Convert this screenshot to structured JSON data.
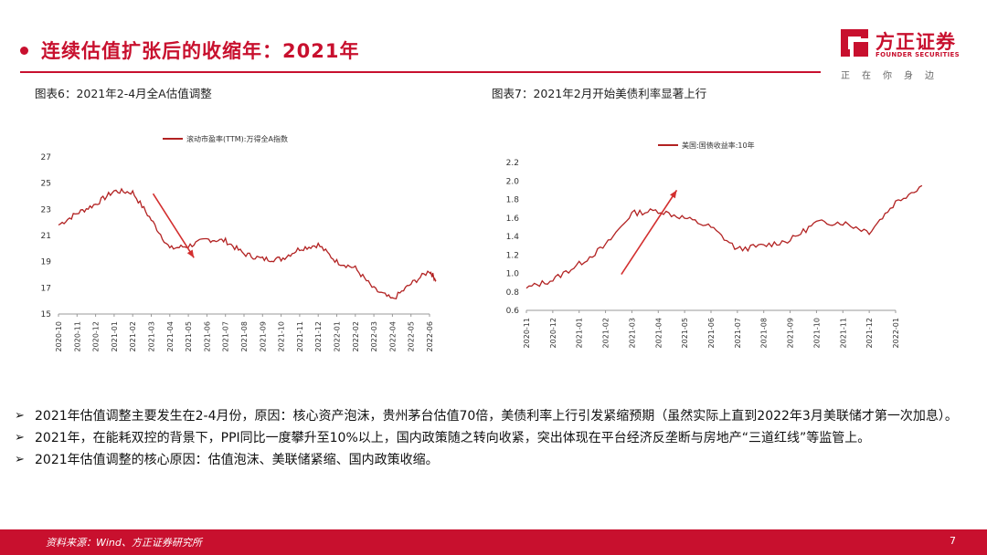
{
  "header": {
    "title": "连续估值扩张后的收缩年：2021年",
    "logo_cn": "方正证券",
    "logo_en": "FOUNDER SECURITIES",
    "logo_slogan": "正在你身边"
  },
  "figures": [
    {
      "caption": "图表6：2021年2-4月全A估值调整"
    },
    {
      "caption": "图表7：2021年2月开始美债利率显著上行"
    }
  ],
  "chart_data": [
    {
      "type": "line",
      "legend": "滚动市盈率(TTM):万得全A指数",
      "ylim": [
        15,
        27
      ],
      "yticks": [
        "27",
        "25",
        "23",
        "21",
        "19",
        "17",
        "15"
      ],
      "xticks": [
        "2020-10",
        "2020-11",
        "2020-12",
        "2021-01",
        "2021-02",
        "2021-03",
        "2021-04",
        "2021-05",
        "2021-06",
        "2021-07",
        "2021-08",
        "2021-09",
        "2021-10",
        "2021-11",
        "2021-12",
        "2022-01",
        "2022-02",
        "2022-03",
        "2022-04",
        "2022-05",
        "2022-06"
      ],
      "x": [
        "2020-10",
        "2020-11",
        "2020-12",
        "2021-01",
        "2021-02",
        "2021-03",
        "2021-04",
        "2021-05",
        "2021-06",
        "2021-07",
        "2021-08",
        "2021-09",
        "2021-10",
        "2021-11",
        "2021-12",
        "2022-01",
        "2022-02",
        "2022-03",
        "2022-04",
        "2022-05",
        "2022-06",
        "2022-06"
      ],
      "values": [
        21.8,
        22.7,
        23.4,
        24.4,
        24.3,
        22.2,
        20.0,
        20.2,
        20.7,
        20.6,
        19.6,
        19.2,
        19.2,
        20.0,
        20.3,
        19.0,
        18.5,
        16.9,
        16.1,
        17.3,
        18.3,
        17.6
      ],
      "annotation": "downward-arrow"
    },
    {
      "type": "line",
      "legend": "美国:国债收益率:10年",
      "ylim": [
        0.6,
        2.2
      ],
      "yticks": [
        "2.2",
        "2.0",
        "1.8",
        "1.6",
        "1.4",
        "1.2",
        "1.0",
        "0.8",
        "0.6"
      ],
      "xticks": [
        "2020-11",
        "2020-12",
        "2021-01",
        "2021-02",
        "2021-03",
        "2021-04",
        "2021-05",
        "2021-06",
        "2021-07",
        "2021-08",
        "2021-09",
        "2021-10",
        "2021-11",
        "2021-12",
        "2022-01"
      ],
      "x": [
        "2020-11",
        "2020-12",
        "2021-01",
        "2021-02",
        "2021-03",
        "2021-04",
        "2021-05",
        "2021-06",
        "2021-07",
        "2021-08",
        "2021-09",
        "2021-10",
        "2021-11",
        "2021-12",
        "2022-01",
        "2022-02"
      ],
      "values": [
        0.84,
        0.93,
        1.1,
        1.3,
        1.65,
        1.68,
        1.6,
        1.5,
        1.26,
        1.3,
        1.36,
        1.55,
        1.55,
        1.45,
        1.77,
        1.95
      ],
      "annotation": "upward-arrow"
    }
  ],
  "bullets": [
    "2021年估值调整主要发生在2-4月份，原因：核心资产泡沫，贵州茅台估值70倍，美债利率上行引发紧缩预期（虽然实际上直到2022年3月美联储才第一次加息）。",
    "2021年，在能耗双控的背景下，PPI同比一度攀升至10%以上，国内政策随之转向收紧，突出体现在平台经济反垄断与房地产“三道红线”等监管上。",
    "2021年估值调整的核心原因：估值泡沫、美联储紧缩、国内政策收缩。"
  ],
  "bullet_mark": "➢",
  "footer": {
    "source": "资料来源：Wind、方正证券研究所",
    "page": "7"
  },
  "colors": {
    "brand_red": "#c8102e",
    "line_red": "#b22222"
  }
}
